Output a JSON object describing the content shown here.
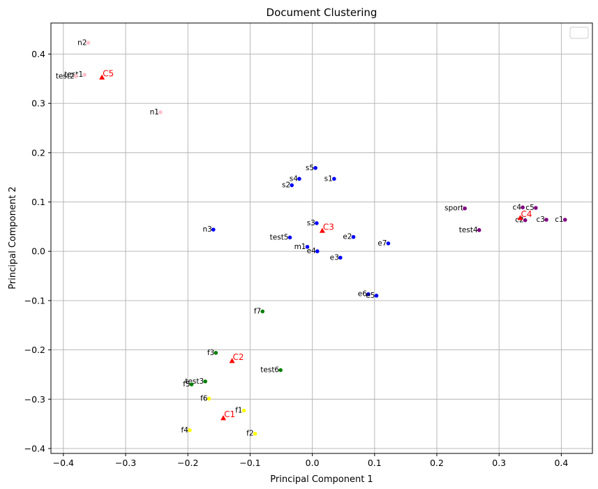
{
  "chart_data": {
    "type": "scatter",
    "title": "Document Clustering",
    "xlabel": "Principal Component 1",
    "ylabel": "Principal Component 2",
    "xlim": [
      -0.42,
      0.45
    ],
    "ylim": [
      -0.41,
      0.463
    ],
    "xticks": [
      -0.4,
      -0.3,
      -0.2,
      -0.1,
      0.0,
      0.1,
      0.2,
      0.3,
      0.4
    ],
    "xtick_labels": [
      "−0.4",
      "−0.3",
      "−0.2",
      "−0.1",
      "0.0",
      "0.1",
      "0.2",
      "0.3",
      "0.4"
    ],
    "yticks": [
      -0.4,
      -0.3,
      -0.2,
      -0.1,
      0.0,
      0.1,
      0.2,
      0.3,
      0.4
    ],
    "ytick_labels": [
      "−0.4",
      "−0.3",
      "−0.2",
      "−0.1",
      "0.0",
      "0.1",
      "0.2",
      "0.3",
      "0.4"
    ],
    "grid": true,
    "legend": "top-right (empty)",
    "cluster_colors": {
      "blue": "#0000ff",
      "green": "#008000",
      "yellow": "#ffff00",
      "purple": "#800080",
      "pink": "#ffc0cb",
      "centroid": "#ff0000"
    },
    "points": [
      {
        "label": "n2",
        "x": -0.36,
        "y": 0.423,
        "color": "pink"
      },
      {
        "label": "test1",
        "x": -0.366,
        "y": 0.358,
        "color": "pink"
      },
      {
        "label": "test2",
        "x": -0.38,
        "y": 0.355,
        "color": "pink"
      },
      {
        "label": "n1",
        "x": -0.244,
        "y": 0.282,
        "color": "pink"
      },
      {
        "label": "s5",
        "x": 0.005,
        "y": 0.169,
        "color": "blue"
      },
      {
        "label": "s4",
        "x": -0.021,
        "y": 0.147,
        "color": "blue"
      },
      {
        "label": "s1",
        "x": 0.035,
        "y": 0.147,
        "color": "blue"
      },
      {
        "label": "s2",
        "x": -0.033,
        "y": 0.134,
        "color": "blue"
      },
      {
        "label": "n3",
        "x": -0.159,
        "y": 0.044,
        "color": "blue"
      },
      {
        "label": "s3",
        "x": 0.007,
        "y": 0.057,
        "color": "blue"
      },
      {
        "label": "test5",
        "x": -0.036,
        "y": 0.028,
        "color": "blue"
      },
      {
        "label": "e2",
        "x": 0.066,
        "y": 0.029,
        "color": "blue"
      },
      {
        "label": "e7",
        "x": 0.122,
        "y": 0.016,
        "color": "blue"
      },
      {
        "label": "m1",
        "x": -0.008,
        "y": 0.009,
        "color": "blue"
      },
      {
        "label": "e4",
        "x": 0.008,
        "y": 0.0,
        "color": "blue"
      },
      {
        "label": "e3",
        "x": 0.045,
        "y": -0.013,
        "color": "blue"
      },
      {
        "label": "e6",
        "x": 0.09,
        "y": -0.087,
        "color": "blue"
      },
      {
        "label": "e5",
        "x": 0.103,
        "y": -0.09,
        "color": "blue"
      },
      {
        "label": "sport",
        "x": 0.245,
        "y": 0.087,
        "color": "purple"
      },
      {
        "label": "c4",
        "x": 0.338,
        "y": 0.089,
        "color": "purple"
      },
      {
        "label": "c5",
        "x": 0.359,
        "y": 0.088,
        "color": "purple"
      },
      {
        "label": "c2",
        "x": 0.342,
        "y": 0.063,
        "color": "purple"
      },
      {
        "label": "c3",
        "x": 0.376,
        "y": 0.064,
        "color": "purple"
      },
      {
        "label": "c1",
        "x": 0.406,
        "y": 0.064,
        "color": "purple"
      },
      {
        "label": "test4",
        "x": 0.268,
        "y": 0.043,
        "color": "purple"
      },
      {
        "label": "f7",
        "x": -0.08,
        "y": -0.122,
        "color": "green"
      },
      {
        "label": "f3",
        "x": -0.155,
        "y": -0.206,
        "color": "green"
      },
      {
        "label": "test6",
        "x": -0.051,
        "y": -0.241,
        "color": "green"
      },
      {
        "label": "test3",
        "x": -0.172,
        "y": -0.264,
        "color": "green"
      },
      {
        "label": "f5",
        "x": -0.194,
        "y": -0.27,
        "color": "green"
      },
      {
        "label": "f6",
        "x": -0.166,
        "y": -0.299,
        "color": "yellow"
      },
      {
        "label": "f1",
        "x": -0.11,
        "y": -0.323,
        "color": "yellow"
      },
      {
        "label": "f4",
        "x": -0.197,
        "y": -0.363,
        "color": "yellow"
      },
      {
        "label": "f2",
        "x": -0.092,
        "y": -0.37,
        "color": "yellow"
      }
    ],
    "centroids": [
      {
        "label": "C5",
        "x": -0.338,
        "y": 0.353
      },
      {
        "label": "C3",
        "x": 0.016,
        "y": 0.042
      },
      {
        "label": "C4",
        "x": 0.334,
        "y": 0.068
      },
      {
        "label": "C2",
        "x": -0.129,
        "y": -0.222
      },
      {
        "label": "C1",
        "x": -0.143,
        "y": -0.338
      }
    ]
  }
}
